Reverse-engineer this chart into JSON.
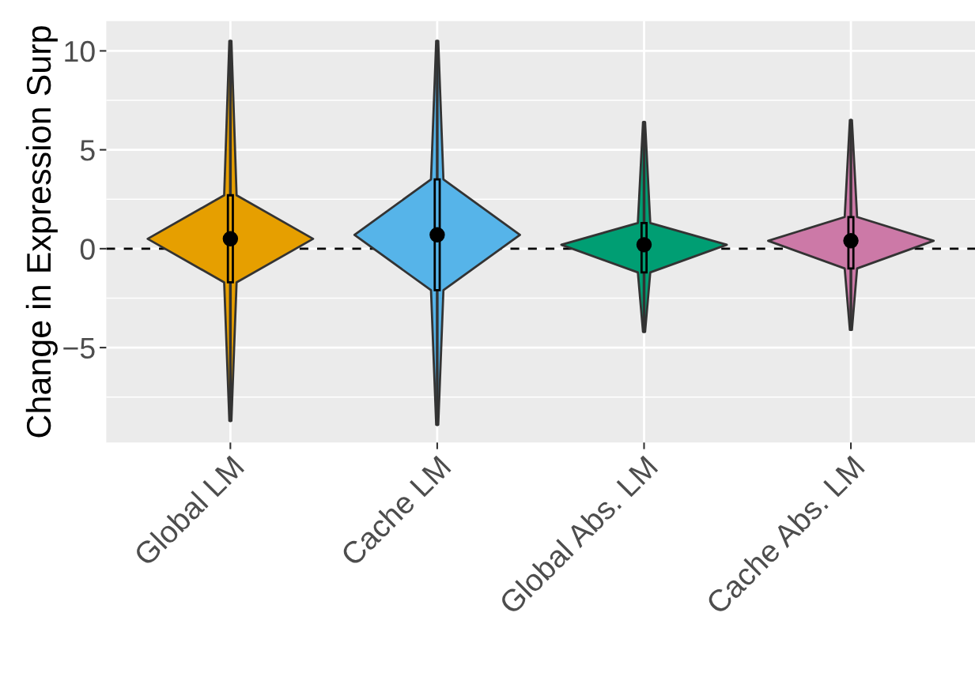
{
  "chart_data": {
    "type": "box",
    "ylabel": "Change in Expression Surp",
    "categories": [
      "Global LM",
      "Cache LM",
      "Global Abs. LM",
      "Cache Abs. LM"
    ],
    "colors": [
      "#e69f00",
      "#56b4e9",
      "#009e73",
      "#cc79a7"
    ],
    "boxes": [
      {
        "low": -8.7,
        "q1": -1.7,
        "median": 0.5,
        "q3": 2.7,
        "high": 10.5
      },
      {
        "low": -8.9,
        "q1": -2.1,
        "median": 0.7,
        "q3": 3.5,
        "high": 10.5
      },
      {
        "low": -4.2,
        "q1": -1.2,
        "median": 0.2,
        "q3": 1.3,
        "high": 6.4
      },
      {
        "low": -4.1,
        "q1": -1.0,
        "median": 0.4,
        "q3": 1.6,
        "high": 6.5
      }
    ],
    "ylim": [
      -9.8,
      11.5
    ],
    "yticks": [
      {
        "value": -7.5,
        "label": null
      },
      {
        "value": -5,
        "label": "−5"
      },
      {
        "value": -2.5,
        "label": null
      },
      0,
      {
        "value": 2.5,
        "label": null
      },
      5,
      {
        "value": 7.5,
        "label": null
      },
      10
    ],
    "ref_lines": [
      {
        "axis": "y",
        "value": 0,
        "color": "#000000",
        "line_style": "dashed"
      }
    ],
    "grid": true
  }
}
